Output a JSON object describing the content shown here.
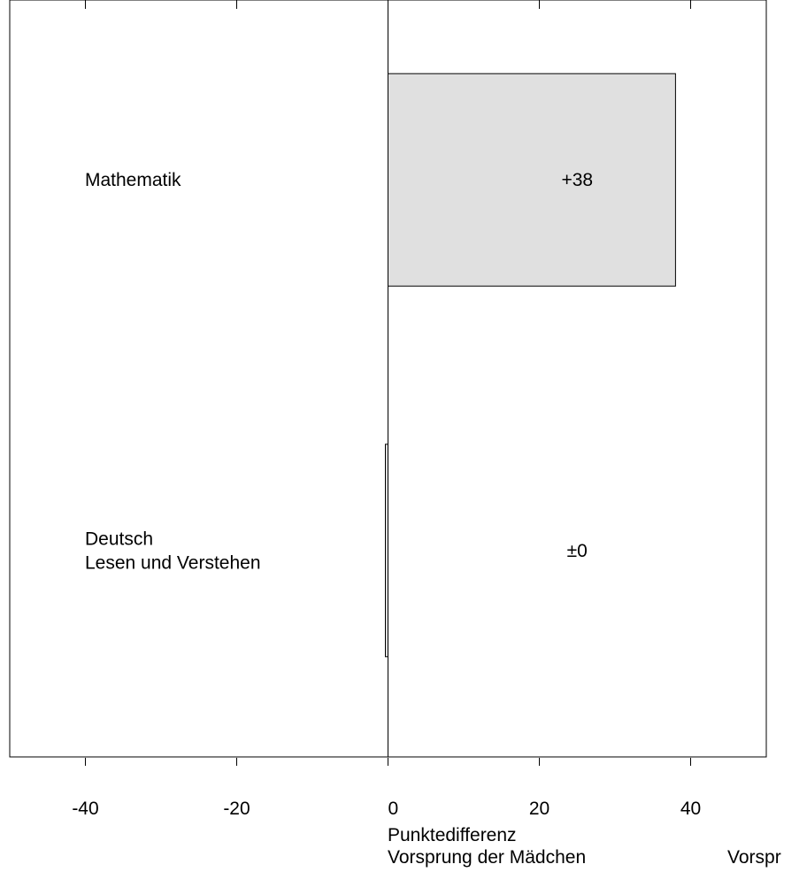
{
  "chart_data": {
    "type": "bar",
    "orientation": "horizontal",
    "categories": [
      {
        "lines": [
          "Mathematik"
        ]
      },
      {
        "lines": [
          "Deutsch",
          "Lesen und Verstehen"
        ]
      }
    ],
    "values": [
      38,
      0
    ],
    "value_labels": [
      "+38",
      "±0"
    ],
    "xlim": [
      -50,
      50
    ],
    "xticks": [
      -40,
      -20,
      0,
      20,
      40
    ],
    "xtick_labels": [
      "-40",
      "-20",
      "0",
      "20",
      "40"
    ],
    "xlabel": "Punktedifferenz",
    "xlabel_left": "Vorsprung der Mädchen",
    "xlabel_right": "Vorspr",
    "grid": false,
    "colors": {
      "bar": "#e0e0e0",
      "stroke": "#000000"
    }
  }
}
